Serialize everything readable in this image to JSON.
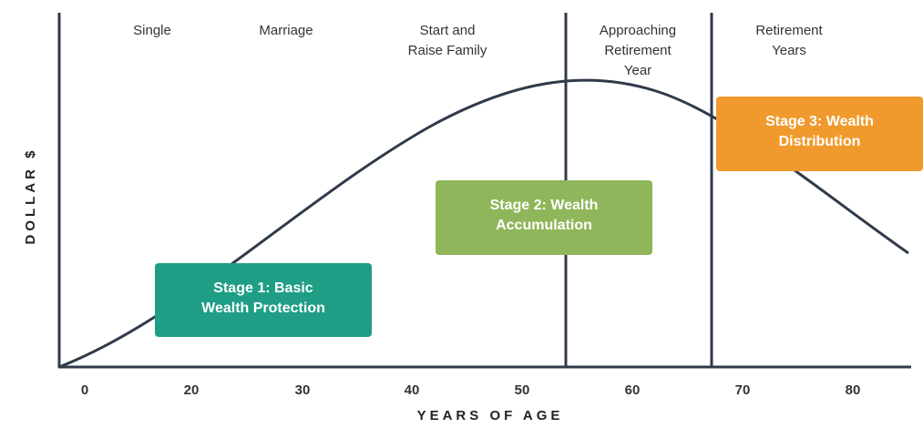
{
  "phases": [
    {
      "lines": [
        "Single"
      ]
    },
    {
      "lines": [
        "Marriage"
      ]
    },
    {
      "lines": [
        "Start and",
        "Raise Family"
      ]
    },
    {
      "lines": [
        "Approaching",
        "Retirement",
        "Year"
      ]
    },
    {
      "lines": [
        "Retirement",
        "Years"
      ]
    }
  ],
  "stages": [
    {
      "bold": "Stage 1:",
      "rest": " Basic",
      "line2": "Wealth Protection"
    },
    {
      "bold": "Stage 2:",
      "rest": " Wealth",
      "line2": "Accumulation"
    },
    {
      "bold": "Stage 3:",
      "rest": " Wealth",
      "line2": "Distribution"
    }
  ],
  "x_ticks": [
    0,
    20,
    30,
    40,
    50,
    60,
    70,
    80
  ],
  "x_axis_label": "YEARS OF AGE",
  "y_axis_label": "DOLLAR $"
}
